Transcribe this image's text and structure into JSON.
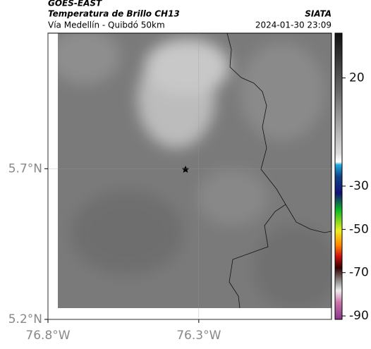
{
  "header": {
    "title": "GOES-EAST",
    "subtitle": "Temperatura de Brillo CH13",
    "source": "SIATA",
    "region": "Vía Medellín - Quibdó 50km",
    "datetime": "2024-01-30 23:09"
  },
  "map": {
    "xlim": [
      -76.8,
      -75.86
    ],
    "ylim": [
      5.2,
      6.15
    ],
    "xticks": [
      {
        "value": -76.8,
        "label": "76.8°W"
      },
      {
        "value": -76.3,
        "label": "76.3°W"
      }
    ],
    "yticks": [
      {
        "value": 5.2,
        "label": "5.2°N"
      },
      {
        "value": 5.7,
        "label": "5.7°N"
      }
    ],
    "grid": true
  },
  "colorbar": {
    "lim": [
      -91.6,
      40.7
    ],
    "ticks": [
      20,
      -30,
      -50,
      -70,
      -90
    ]
  }
}
